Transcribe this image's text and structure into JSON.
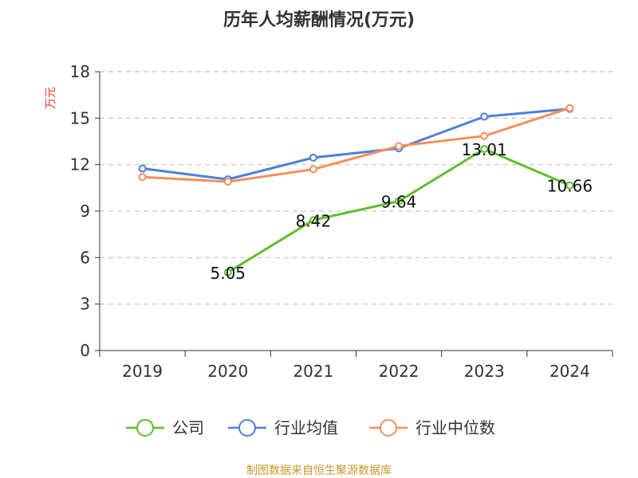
{
  "chart_data": {
    "type": "line",
    "title": "历年人均薪酬情况(万元)",
    "ylabel": "万元",
    "xlabel": "",
    "categories": [
      "2019",
      "2020",
      "2021",
      "2022",
      "2023",
      "2024"
    ],
    "ylim": [
      0,
      18
    ],
    "yticks": [
      0,
      3,
      6,
      9,
      12,
      15,
      18
    ],
    "grid": true,
    "legend_position": "bottom",
    "series": [
      {
        "name": "公司",
        "color": "#5cbf2a",
        "values": [
          null,
          5.05,
          8.42,
          9.64,
          13.01,
          10.66
        ],
        "labels": [
          null,
          "5.05",
          "8.42",
          "9.64",
          "13.01",
          "10.66"
        ]
      },
      {
        "name": "行业均值",
        "color": "#4e7fd9",
        "values": [
          11.75,
          11.05,
          12.45,
          13.05,
          15.1,
          15.6
        ]
      },
      {
        "name": "行业中位数",
        "color": "#f58f59",
        "values": [
          11.2,
          10.9,
          11.7,
          13.2,
          13.85,
          15.65
        ]
      }
    ]
  },
  "footer": {
    "source_text": "制图数据来自恒生聚源数据库",
    "color": "#c8962c"
  },
  "ylabel_color": "#e53935"
}
